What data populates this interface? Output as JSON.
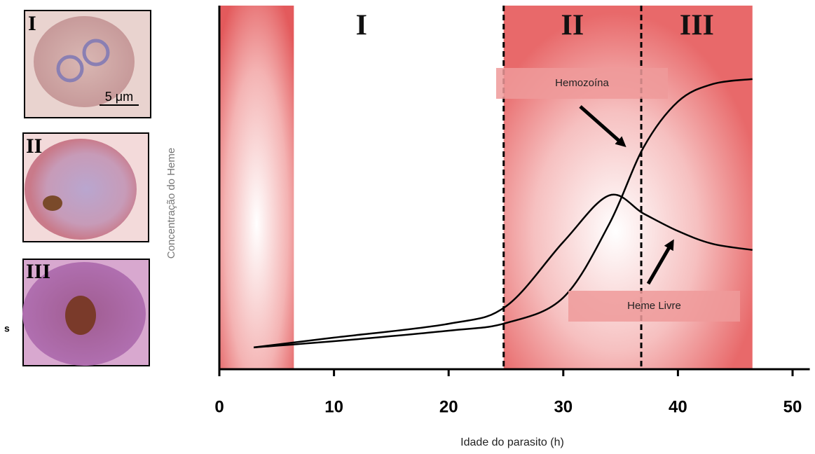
{
  "panels": {
    "labels": [
      "I",
      "II",
      "III"
    ],
    "scale_bar": "5 μm",
    "side_text": "s"
  },
  "chart_data": {
    "type": "line",
    "x_label": "Idade do parasito (h)",
    "y_label": "Concentração do Heme",
    "xlim": [
      0,
      51.5
    ],
    "xticks": [
      0,
      10,
      20,
      30,
      40,
      50
    ],
    "ylim": [
      0,
      100
    ],
    "x": [
      3,
      10,
      20,
      25,
      30,
      34,
      37,
      40,
      43,
      46.5
    ],
    "series": [
      {
        "name": "Hemozoína",
        "color": "#000000",
        "values": [
          6,
          7.7,
          10.6,
          12.7,
          19.7,
          39.9,
          61,
          73.6,
          78.4,
          79.8
        ]
      },
      {
        "name": "Heme Livre",
        "color": "#000000",
        "values": [
          6,
          8.7,
          12.5,
          17.3,
          35,
          47.8,
          42.8,
          38,
          34.5,
          32.8
        ]
      }
    ],
    "shaded_bands": [
      [
        0,
        6.5
      ],
      [
        24.8,
        46.5
      ]
    ],
    "phases": [
      {
        "label": "I",
        "start": 0,
        "end": 24.8
      },
      {
        "label": "II",
        "start": 24.8,
        "end": 36.8
      },
      {
        "label": "III",
        "start": 36.8,
        "end": 46.5
      }
    ]
  }
}
